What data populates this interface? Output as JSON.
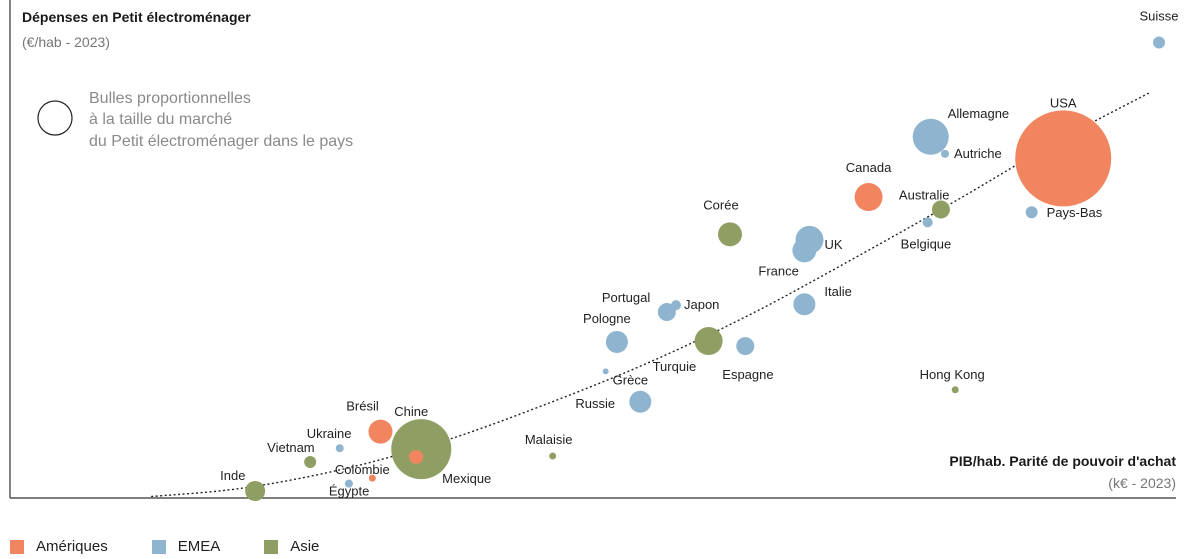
{
  "chart_data": {
    "type": "scatter",
    "title": "Dépenses en Petit électroménager",
    "subtitle": "(€/hab - 2023)",
    "xlabel": "PIB/hab. Parité de pouvoir d'achat",
    "xlabel_sub": "(k€ - 2023)",
    "bubble_note": [
      "Bulles proportionnelles",
      "à la taille du marché",
      "du Petit électroménager dans le pays"
    ],
    "xlim": [
      0,
      100
    ],
    "ylim": [
      0,
      100
    ],
    "grid": false,
    "legend_position": "bottom-left",
    "trendline": "dotted",
    "colors": {
      "Amériques": "#f0855f",
      "EMEA": "#8fb4d0",
      "Asie": "#8f9f63"
    },
    "series": [
      {
        "name": "Amériques",
        "color": "#f0855f",
        "points": [
          {
            "label": "USA",
            "x": 90.6,
            "y": 72.3,
            "r": 48
          },
          {
            "label": "Canada",
            "x": 71.5,
            "y": 63.9,
            "r": 14
          },
          {
            "label": "Brésil",
            "x": 23.6,
            "y": 12.9,
            "r": 12
          },
          {
            "label": "Mexique",
            "x": 27.1,
            "y": 7.4,
            "r": 7
          },
          {
            "label": "Colombie",
            "x": 22.8,
            "y": 2.8,
            "r": 3.5
          }
        ]
      },
      {
        "name": "EMEA",
        "color": "#8fb4d0",
        "points": [
          {
            "label": "Suisse",
            "x": 100.0,
            "y": 97.5,
            "r": 6
          },
          {
            "label": "Allemagne",
            "x": 77.6,
            "y": 77.0,
            "r": 18
          },
          {
            "label": "Autriche",
            "x": 79.0,
            "y": 73.3,
            "r": 4
          },
          {
            "label": "Pays-Bas",
            "x": 87.5,
            "y": 60.6,
            "r": 6
          },
          {
            "label": "Belgique",
            "x": 77.3,
            "y": 58.4,
            "r": 5
          },
          {
            "label": "UK",
            "x": 65.7,
            "y": 54.6,
            "r": 14
          },
          {
            "label": "France",
            "x": 65.2,
            "y": 52.3,
            "r": 12
          },
          {
            "label": "Italie",
            "x": 65.2,
            "y": 40.6,
            "r": 11
          },
          {
            "label": "Japon",
            "x": 52.6,
            "y": 40.4,
            "r": 5
          },
          {
            "label": "Portugal",
            "x": 51.7,
            "y": 38.9,
            "r": 9
          },
          {
            "label": "Espagne",
            "x": 59.4,
            "y": 31.5,
            "r": 9
          },
          {
            "label": "Pologne",
            "x": 46.8,
            "y": 32.4,
            "r": 11
          },
          {
            "label": "Grèce",
            "x": 45.7,
            "y": 26.0,
            "r": 3
          },
          {
            "label": "Russie",
            "x": 49.1,
            "y": 19.4,
            "r": 11
          },
          {
            "label": "Ukraine",
            "x": 19.6,
            "y": 9.3,
            "r": 4
          },
          {
            "label": "Égypte",
            "x": 20.5,
            "y": 1.6,
            "r": 4
          }
        ]
      },
      {
        "name": "Asie",
        "color": "#8f9f63",
        "points": [
          {
            "label": "Corée",
            "x": 57.9,
            "y": 55.8,
            "r": 12
          },
          {
            "label": "Australie",
            "x": 78.6,
            "y": 61.2,
            "r": 9
          },
          {
            "label": "Turquie",
            "x": 55.8,
            "y": 32.6,
            "r": 14
          },
          {
            "label": "Hong Kong",
            "x": 80.0,
            "y": 22.0,
            "r": 3.5
          },
          {
            "label": "Malaisie",
            "x": 40.5,
            "y": 7.6,
            "r": 3.5
          },
          {
            "label": "Chine",
            "x": 27.6,
            "y": 9.1,
            "r": 30
          },
          {
            "label": "Vietnam",
            "x": 16.7,
            "y": 6.3,
            "r": 6
          },
          {
            "label": "Inde",
            "x": 11.3,
            "y": 0.0,
            "r": 10
          }
        ]
      }
    ],
    "trend": [
      [
        1.1,
        -1.2
      ],
      [
        10,
        0.6
      ],
      [
        20,
        4.8
      ],
      [
        30,
        11.0
      ],
      [
        40,
        19.0
      ],
      [
        50,
        28.0
      ],
      [
        60,
        38.5
      ],
      [
        70,
        50.5
      ],
      [
        80,
        63.0
      ],
      [
        90,
        76.0
      ],
      [
        99,
        86.5
      ]
    ]
  }
}
